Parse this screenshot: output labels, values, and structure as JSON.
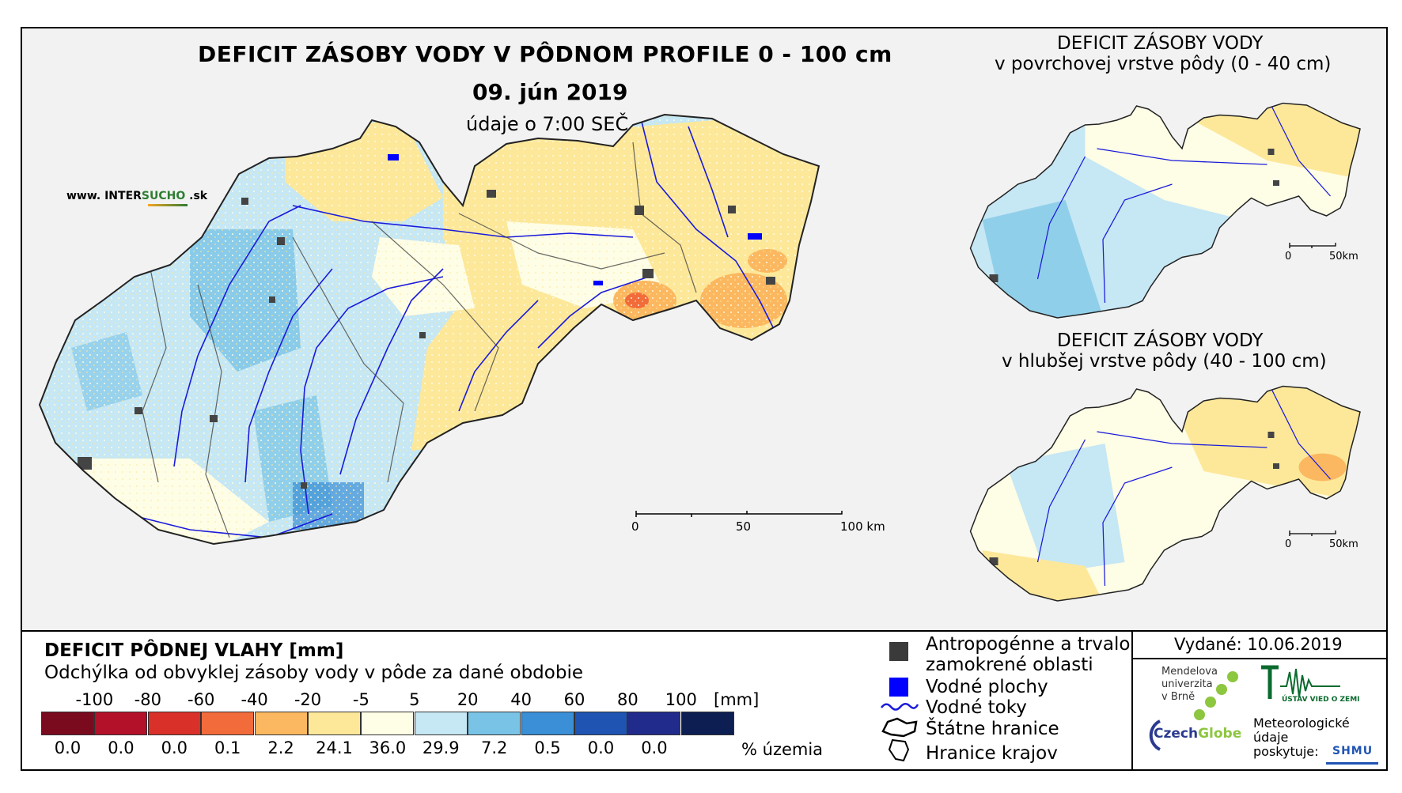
{
  "header": {
    "title": "DEFICIT ZÁSOBY VODY V PÔDNOM PROFILE 0 - 100 cm",
    "date": "09. jún 2019",
    "time": "údaje o 7:00 SEČ",
    "website_prefix": "www. INTER",
    "website_brand": "SUCHO",
    "website_suffix": " .sk"
  },
  "insets": [
    {
      "title": "DEFICIT ZÁSOBY VODY",
      "subtitle": "v povrchovej vrstve pôdy (0 - 40 cm)",
      "scale": [
        "0",
        "50km"
      ]
    },
    {
      "title": "DEFICIT ZÁSOBY VODY",
      "subtitle": "v hlubšej vrstve pôdy (40 - 100 cm)",
      "scale": [
        "0",
        "50km"
      ]
    }
  ],
  "main_scale": [
    "0",
    "50",
    "100 km"
  ],
  "legend": {
    "title": "DEFICIT PÔDNEJ VLAHY [mm]",
    "subtitle": "Odchýlka od obvyklej zásoby vody v pôde za dané obdobie",
    "ticks": [
      "-100",
      "-80",
      "-60",
      "-40",
      "-20",
      "-5",
      "5",
      "20",
      "40",
      "60",
      "80",
      "100"
    ],
    "unit": "[mm]",
    "classes": [
      {
        "color": "#7a0a1e",
        "percent": "0.0"
      },
      {
        "color": "#b3102a",
        "percent": "0.0"
      },
      {
        "color": "#d9302a",
        "percent": "0.0"
      },
      {
        "color": "#f26b3a",
        "percent": "0.1"
      },
      {
        "color": "#fbb860",
        "percent": "2.2"
      },
      {
        "color": "#fde89a",
        "percent": "24.1"
      },
      {
        "color": "#fefde6",
        "percent": "36.0"
      },
      {
        "color": "#c6e7f4",
        "percent": "29.9"
      },
      {
        "color": "#79c4e6",
        "percent": "7.2"
      },
      {
        "color": "#3a8fd6",
        "percent": "0.5"
      },
      {
        "color": "#1f54b3",
        "percent": "0.0"
      },
      {
        "color": "#212b8c",
        "percent": "0.0"
      },
      {
        "color": "#0d1e52",
        "percent": ""
      }
    ],
    "percent_label": "% územia"
  },
  "symbols": {
    "urban_line1": "Antropogénne a trvalo",
    "urban_line2": "zamokrené oblasti",
    "water": "Vodné plochy",
    "rivers": "Vodné toky",
    "state_border": "Štátne hranice",
    "region_border": "Hranice krajov"
  },
  "info": {
    "issued": "Vydané: 10.06.2019",
    "mendel": [
      "Mendelova",
      "univerzita",
      "v Brně"
    ],
    "czechglobe_a": "Czech",
    "czechglobe_b": "Globe",
    "ustav": "ÚSTAV VIED O ZEMI",
    "meteo": [
      "Meteorologické",
      "údaje",
      "poskytuje:"
    ],
    "shmu": "SHMU"
  }
}
